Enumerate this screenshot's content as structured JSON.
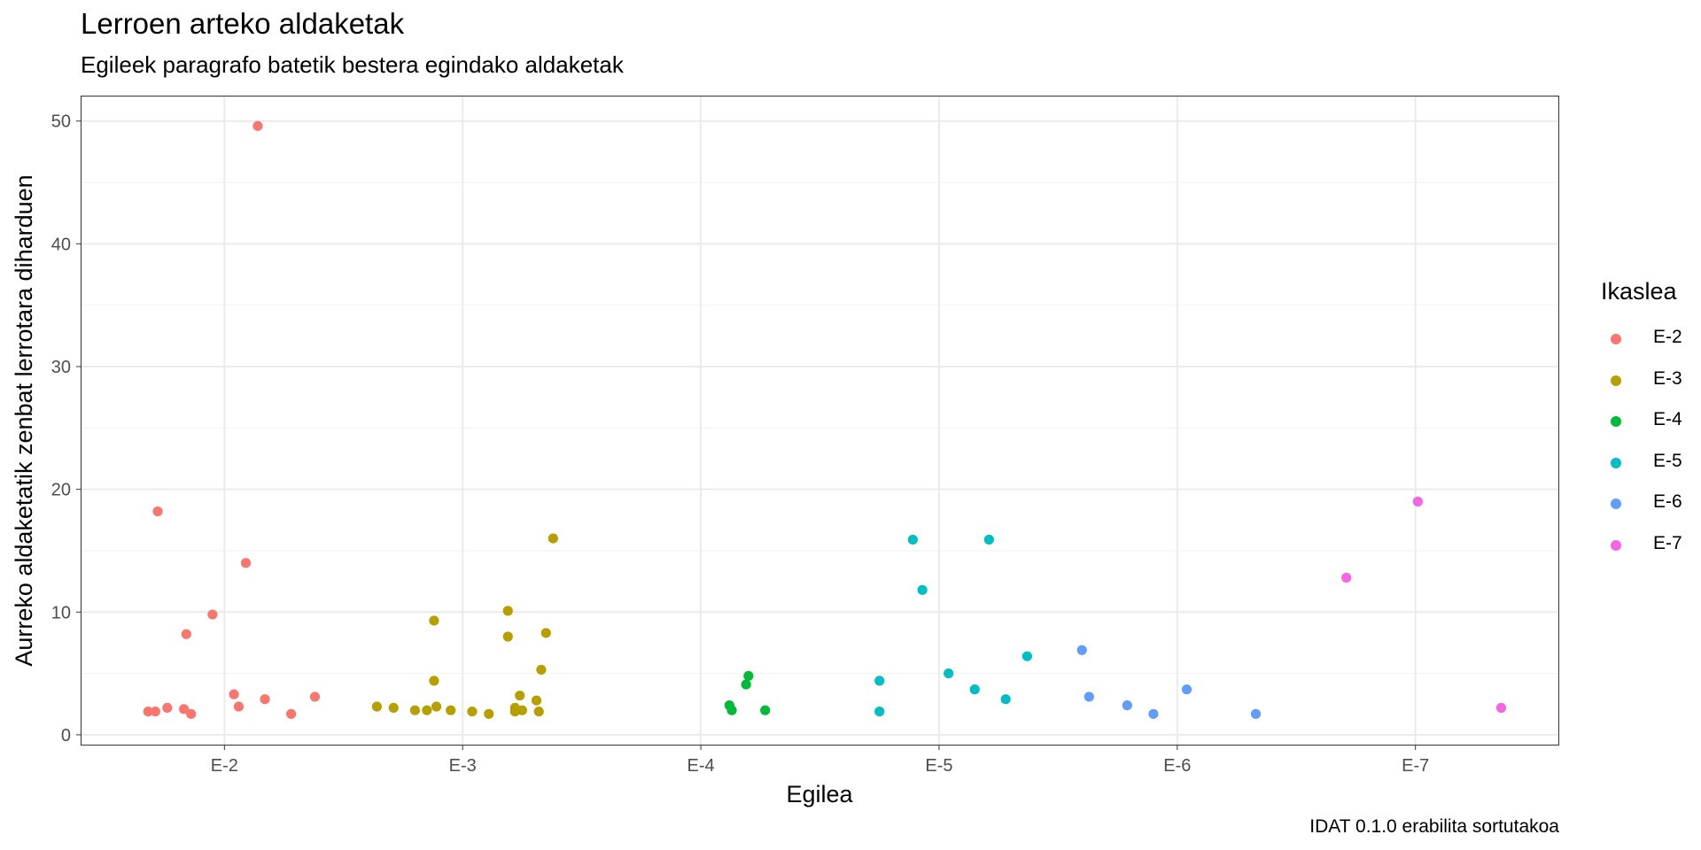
{
  "chart_data": {
    "type": "scatter",
    "title": "Lerroen arteko aldaketak",
    "subtitle": "Egileek paragrafo batetik bestera egindako aldaketak",
    "caption": "IDAT 0.1.0 erabilita sortutakoa",
    "xlabel": "Egilea",
    "ylabel": "Aurreko aldaketatik zenbat lerrotara diharduen",
    "x_categories": [
      "E-2",
      "E-3",
      "E-4",
      "E-5",
      "E-6",
      "E-7"
    ],
    "y_ticks": [
      0,
      10,
      20,
      30,
      40,
      50
    ],
    "ylim": [
      -0.8,
      52
    ],
    "grid": true,
    "legend": {
      "title": "Ikaslea",
      "position": "right",
      "entries": [
        {
          "label": "E-2",
          "color": "#F8766D"
        },
        {
          "label": "E-3",
          "color": "#B79F00"
        },
        {
          "label": "E-4",
          "color": "#00BA38"
        },
        {
          "label": "E-5",
          "color": "#00BFC4"
        },
        {
          "label": "E-6",
          "color": "#619CFF"
        },
        {
          "label": "E-7",
          "color": "#F564E3"
        }
      ]
    },
    "series": [
      {
        "name": "E-2",
        "color": "#F8766D",
        "points": [
          {
            "x": 2.14,
            "y": 49.6
          },
          {
            "x": 1.72,
            "y": 18.2
          },
          {
            "x": 2.09,
            "y": 14.0
          },
          {
            "x": 1.95,
            "y": 9.8
          },
          {
            "x": 1.84,
            "y": 8.2
          },
          {
            "x": 2.04,
            "y": 3.3
          },
          {
            "x": 2.38,
            "y": 3.1
          },
          {
            "x": 2.17,
            "y": 2.9
          },
          {
            "x": 2.06,
            "y": 2.3
          },
          {
            "x": 1.76,
            "y": 2.2
          },
          {
            "x": 1.83,
            "y": 2.1
          },
          {
            "x": 1.68,
            "y": 1.9
          },
          {
            "x": 1.71,
            "y": 1.9
          },
          {
            "x": 1.86,
            "y": 1.7
          },
          {
            "x": 2.28,
            "y": 1.7
          }
        ]
      },
      {
        "name": "E-3",
        "color": "#B79F00",
        "points": [
          {
            "x": 3.38,
            "y": 16.0
          },
          {
            "x": 3.19,
            "y": 10.1
          },
          {
            "x": 2.88,
            "y": 9.3
          },
          {
            "x": 3.35,
            "y": 8.3
          },
          {
            "x": 3.19,
            "y": 8.0
          },
          {
            "x": 3.33,
            "y": 5.3
          },
          {
            "x": 2.88,
            "y": 4.4
          },
          {
            "x": 3.24,
            "y": 3.2
          },
          {
            "x": 3.31,
            "y": 2.8
          },
          {
            "x": 2.64,
            "y": 2.3
          },
          {
            "x": 2.89,
            "y": 2.3
          },
          {
            "x": 2.71,
            "y": 2.2
          },
          {
            "x": 3.22,
            "y": 2.2
          },
          {
            "x": 2.8,
            "y": 2.0
          },
          {
            "x": 2.85,
            "y": 2.0
          },
          {
            "x": 2.95,
            "y": 2.0
          },
          {
            "x": 3.25,
            "y": 2.0
          },
          {
            "x": 3.04,
            "y": 1.9
          },
          {
            "x": 3.22,
            "y": 1.9
          },
          {
            "x": 3.32,
            "y": 1.9
          },
          {
            "x": 3.11,
            "y": 1.7
          }
        ]
      },
      {
        "name": "E-4",
        "color": "#00BA38",
        "points": [
          {
            "x": 4.2,
            "y": 4.8
          },
          {
            "x": 4.19,
            "y": 4.1
          },
          {
            "x": 4.12,
            "y": 2.4
          },
          {
            "x": 4.13,
            "y": 2.0
          },
          {
            "x": 4.27,
            "y": 2.0
          }
        ]
      },
      {
        "name": "E-5",
        "color": "#00BFC4",
        "points": [
          {
            "x": 4.89,
            "y": 15.9
          },
          {
            "x": 5.21,
            "y": 15.9
          },
          {
            "x": 4.93,
            "y": 11.8
          },
          {
            "x": 5.37,
            "y": 6.4
          },
          {
            "x": 5.04,
            "y": 5.0
          },
          {
            "x": 4.75,
            "y": 4.4
          },
          {
            "x": 5.15,
            "y": 3.7
          },
          {
            "x": 5.28,
            "y": 2.9
          },
          {
            "x": 4.75,
            "y": 1.9
          }
        ]
      },
      {
        "name": "E-6",
        "color": "#619CFF",
        "points": [
          {
            "x": 5.6,
            "y": 6.9
          },
          {
            "x": 6.04,
            "y": 3.7
          },
          {
            "x": 5.63,
            "y": 3.1
          },
          {
            "x": 5.79,
            "y": 2.4
          },
          {
            "x": 5.9,
            "y": 1.7
          },
          {
            "x": 6.33,
            "y": 1.7
          }
        ]
      },
      {
        "name": "E-7",
        "color": "#F564E3",
        "points": [
          {
            "x": 7.01,
            "y": 19.0
          },
          {
            "x": 6.71,
            "y": 12.8
          },
          {
            "x": 7.36,
            "y": 2.2
          }
        ]
      }
    ]
  }
}
